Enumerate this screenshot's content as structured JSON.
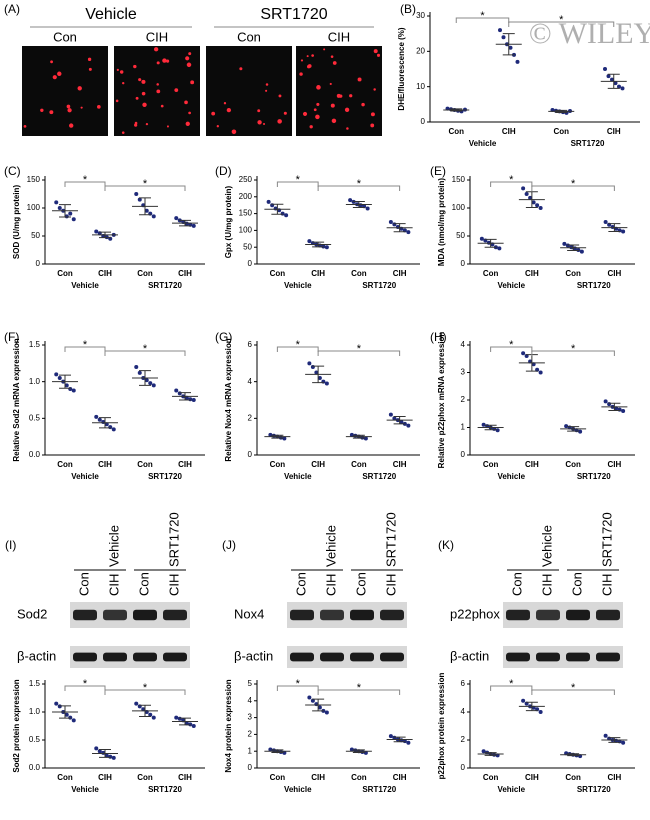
{
  "watermark": "© WILEY",
  "panel_a": {
    "label": "(A)",
    "groups": [
      "Vehicle",
      "SRT1720"
    ],
    "conditions": [
      "Con",
      "CIH",
      "Con",
      "CIH"
    ]
  },
  "blots": [
    {
      "label": "(I)",
      "groups": [
        "Vehicle",
        "SRT1720"
      ],
      "lanes": [
        "Con",
        "CIH",
        "Con",
        "CIH"
      ],
      "proteins": [
        "Sod2",
        "β-actin"
      ]
    },
    {
      "label": "(J)",
      "groups": [
        "Vehicle",
        "SRT1720"
      ],
      "lanes": [
        "Con",
        "CIH",
        "Con",
        "CIH"
      ],
      "proteins": [
        "Nox4",
        "β-actin"
      ]
    },
    {
      "label": "(K)",
      "groups": [
        "Vehicle",
        "SRT1720"
      ],
      "lanes": [
        "Con",
        "CIH",
        "Con",
        "CIH"
      ],
      "proteins": [
        "p22phox",
        "β-actin"
      ]
    }
  ],
  "chart_data": [
    {
      "type": "dotplot",
      "label": "(B)",
      "ylabel": "DHE/fluorescence (%)",
      "categories": [
        "Con",
        "CIH",
        "Con",
        "CIH"
      ],
      "groups": [
        "Vehicle",
        "SRT1720"
      ],
      "color": "#1f2a7a",
      "points": [
        [
          3.8,
          3.6,
          3.4,
          3.2,
          3.0,
          3.5
        ],
        [
          26,
          24,
          22,
          21,
          19,
          17
        ],
        [
          3.4,
          3.2,
          3.0,
          2.8,
          2.6,
          3.1
        ],
        [
          15,
          13,
          12,
          11,
          10,
          9.5
        ]
      ],
      "means": [
        3.4,
        22,
        3.0,
        11.5
      ],
      "sds": [
        0.3,
        3,
        0.3,
        2
      ],
      "ylim": [
        0,
        30
      ],
      "yticks": [
        0,
        10,
        20,
        30
      ],
      "annotations": [
        "*",
        "*"
      ]
    },
    {
      "type": "dotplot",
      "label": "(C)",
      "ylabel": "SOD (U/mg protein)",
      "categories": [
        "Con",
        "CIH",
        "Con",
        "CIH"
      ],
      "groups": [
        "Vehicle",
        "SRT1720"
      ],
      "color": "#1f2a7a",
      "points": [
        [
          110,
          100,
          95,
          85,
          90,
          80
        ],
        [
          58,
          55,
          50,
          48,
          45,
          52
        ],
        [
          125,
          115,
          105,
          95,
          90,
          85
        ],
        [
          82,
          78,
          75,
          72,
          70,
          68
        ]
      ],
      "means": [
        95,
        52,
        103,
        73
      ],
      "sds": [
        11,
        5,
        15,
        5
      ],
      "ylim": [
        0,
        150
      ],
      "yticks": [
        0,
        50,
        100,
        150
      ],
      "annotations": [
        "*",
        "*"
      ]
    },
    {
      "type": "dotplot",
      "label": "(D)",
      "ylabel": "Gpx (U/mg protein)",
      "categories": [
        "Con",
        "CIH",
        "Con",
        "CIH"
      ],
      "groups": [
        "Vehicle",
        "SRT1720"
      ],
      "color": "#1f2a7a",
      "points": [
        [
          185,
          175,
          165,
          160,
          150,
          145
        ],
        [
          68,
          62,
          58,
          55,
          52,
          50
        ],
        [
          190,
          185,
          178,
          175,
          172,
          165
        ],
        [
          125,
          118,
          110,
          105,
          100,
          95
        ]
      ],
      "means": [
        163,
        58,
        177,
        108
      ],
      "sds": [
        15,
        7,
        9,
        12
      ],
      "ylim": [
        0,
        250
      ],
      "yticks": [
        0,
        50,
        100,
        150,
        200,
        250
      ],
      "annotations": [
        "*",
        "*"
      ]
    },
    {
      "type": "dotplot",
      "label": "(E)",
      "ylabel": "MDA (nmol/mg protein)",
      "categories": [
        "Con",
        "CIH",
        "Con",
        "CIH"
      ],
      "groups": [
        "Vehicle",
        "SRT1720"
      ],
      "color": "#1f2a7a",
      "points": [
        [
          45,
          42,
          38,
          35,
          30,
          28
        ],
        [
          135,
          125,
          118,
          110,
          105,
          100
        ],
        [
          36,
          33,
          30,
          28,
          25,
          22
        ],
        [
          75,
          70,
          66,
          63,
          60,
          58
        ]
      ],
      "means": [
        37,
        115,
        29,
        65
      ],
      "sds": [
        7,
        14,
        5,
        7
      ],
      "ylim": [
        0,
        150
      ],
      "yticks": [
        0,
        50,
        100,
        150
      ],
      "annotations": [
        "*",
        "*"
      ]
    },
    {
      "type": "dotplot",
      "label": "(F)",
      "ylabel": "Relative Sod2 mRNA expression",
      "categories": [
        "Con",
        "CIH",
        "Con",
        "CIH"
      ],
      "groups": [
        "Vehicle",
        "SRT1720"
      ],
      "color": "#1f2a7a",
      "points": [
        [
          1.1,
          1.05,
          1.0,
          0.95,
          0.9,
          0.88
        ],
        [
          0.52,
          0.48,
          0.45,
          0.42,
          0.38,
          0.35
        ],
        [
          1.2,
          1.12,
          1.05,
          1.02,
          0.98,
          0.95
        ],
        [
          0.88,
          0.84,
          0.8,
          0.78,
          0.76,
          0.75
        ]
      ],
      "means": [
        1.0,
        0.44,
        1.05,
        0.8
      ],
      "sds": [
        0.09,
        0.07,
        0.1,
        0.05
      ],
      "ylim": [
        0,
        1.5
      ],
      "yticks": [
        {
          "value": 0,
          "label": "0.0"
        },
        {
          "value": 0.5,
          "label": "0.5"
        },
        {
          "value": 1,
          "label": "1.0"
        },
        {
          "value": 1.5,
          "label": "1.5"
        }
      ],
      "annotations": [
        "*",
        "*"
      ]
    },
    {
      "type": "dotplot",
      "label": "(G)",
      "ylabel": "Relative Nox4 mRNA expression",
      "categories": [
        "Con",
        "CIH",
        "Con",
        "CIH"
      ],
      "groups": [
        "Vehicle",
        "SRT1720"
      ],
      "color": "#1f2a7a",
      "points": [
        [
          1.1,
          1.05,
          1.0,
          0.95,
          0.9
        ],
        [
          5.0,
          4.8,
          4.5,
          4.2,
          4.0,
          3.9
        ],
        [
          1.1,
          1.05,
          1.0,
          0.95,
          0.9
        ],
        [
          2.2,
          2.0,
          1.9,
          1.8,
          1.7,
          1.6
        ]
      ],
      "means": [
        1.0,
        4.4,
        1.0,
        1.9
      ],
      "sds": [
        0.08,
        0.45,
        0.08,
        0.2
      ],
      "ylim": [
        0,
        6
      ],
      "yticks": [
        0,
        2,
        4,
        6
      ],
      "annotations": [
        "*",
        "*"
      ]
    },
    {
      "type": "dotplot",
      "label": "(H)",
      "ylabel": "Relative p22phox mRNA expression",
      "categories": [
        "Con",
        "CIH",
        "Con",
        "CIH"
      ],
      "groups": [
        "Vehicle",
        "SRT1720"
      ],
      "color": "#1f2a7a",
      "points": [
        [
          1.1,
          1.05,
          1.0,
          0.95,
          0.9
        ],
        [
          3.7,
          3.6,
          3.4,
          3.3,
          3.1,
          3.0
        ],
        [
          1.05,
          1.0,
          0.95,
          0.9,
          0.85
        ],
        [
          1.95,
          1.85,
          1.75,
          1.7,
          1.65,
          1.6
        ]
      ],
      "means": [
        1.0,
        3.35,
        0.95,
        1.75
      ],
      "sds": [
        0.08,
        0.3,
        0.08,
        0.13
      ],
      "ylim": [
        0,
        4
      ],
      "yticks": [
        0,
        1,
        2,
        3,
        4
      ],
      "annotations": [
        "*",
        "*"
      ]
    },
    {
      "type": "dotplot",
      "label": "(I)",
      "ylabel": "Sod2 protein expression",
      "categories": [
        "Con",
        "CIH",
        "Con",
        "CIH"
      ],
      "groups": [
        "Vehicle",
        "SRT1720"
      ],
      "color": "#1f2a7a",
      "points": [
        [
          1.15,
          1.1,
          1.0,
          0.95,
          0.9,
          0.85
        ],
        [
          0.35,
          0.3,
          0.27,
          0.22,
          0.2,
          0.18
        ],
        [
          1.15,
          1.1,
          1.05,
          1.0,
          0.95,
          0.9
        ],
        [
          0.9,
          0.88,
          0.85,
          0.8,
          0.78,
          0.75
        ]
      ],
      "means": [
        1.0,
        0.26,
        1.02,
        0.83
      ],
      "sds": [
        0.11,
        0.07,
        0.1,
        0.06
      ],
      "ylim": [
        0,
        1.5
      ],
      "yticks": [
        {
          "value": 0,
          "label": "0.0"
        },
        {
          "value": 0.5,
          "label": "0.5"
        },
        {
          "value": 1,
          "label": "1.0"
        },
        {
          "value": 1.5,
          "label": "1.5"
        }
      ],
      "annotations": [
        "*",
        "*"
      ]
    },
    {
      "type": "dotplot",
      "label": "(J)",
      "ylabel": "Nox4 protein expression",
      "categories": [
        "Con",
        "CIH",
        "Con",
        "CIH"
      ],
      "groups": [
        "Vehicle",
        "SRT1720"
      ],
      "color": "#1f2a7a",
      "points": [
        [
          1.1,
          1.05,
          1.0,
          0.95,
          0.9
        ],
        [
          4.2,
          4.0,
          3.8,
          3.6,
          3.4,
          3.3
        ],
        [
          1.1,
          1.05,
          1.0,
          0.95,
          0.9
        ],
        [
          1.9,
          1.8,
          1.7,
          1.65,
          1.6,
          1.5
        ]
      ],
      "means": [
        1.0,
        3.75,
        1.0,
        1.7
      ],
      "sds": [
        0.08,
        0.35,
        0.08,
        0.14
      ],
      "ylim": [
        0,
        5
      ],
      "yticks": [
        0,
        1,
        2,
        3,
        4,
        5
      ],
      "annotations": [
        "*",
        "*"
      ]
    },
    {
      "type": "dotplot",
      "label": "(K)",
      "ylabel": "p22phox protein expression",
      "categories": [
        "Con",
        "CIH",
        "Con",
        "CIH"
      ],
      "groups": [
        "Vehicle",
        "SRT1720"
      ],
      "color": "#1f2a7a",
      "points": [
        [
          1.2,
          1.1,
          1.0,
          0.95,
          0.9
        ],
        [
          4.8,
          4.6,
          4.4,
          4.3,
          4.2,
          4.0
        ],
        [
          1.05,
          1.0,
          0.95,
          0.9,
          0.85
        ],
        [
          2.3,
          2.1,
          2.0,
          1.95,
          1.9,
          1.8
        ]
      ],
      "means": [
        1.0,
        4.4,
        0.95,
        2.0
      ],
      "sds": [
        0.1,
        0.3,
        0.07,
        0.17
      ],
      "ylim": [
        0,
        6
      ],
      "yticks": [
        0,
        2,
        4,
        6
      ],
      "annotations": [
        "*",
        "*"
      ]
    }
  ]
}
